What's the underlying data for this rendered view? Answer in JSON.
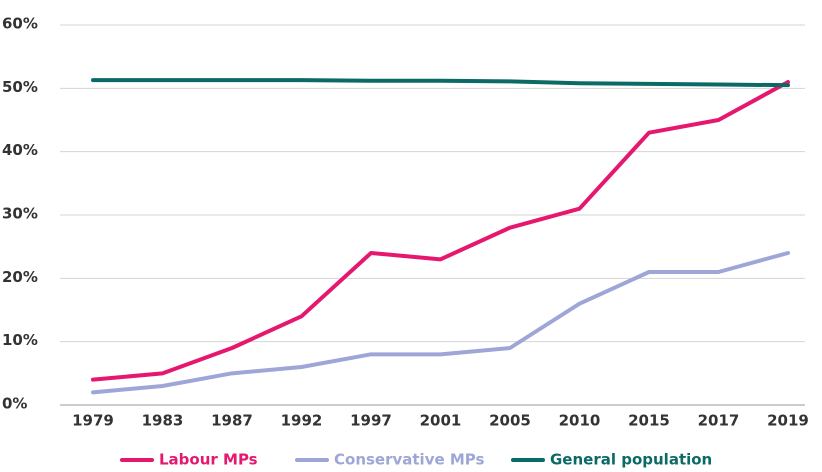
{
  "chart_data": {
    "type": "line",
    "categories": [
      "1979",
      "1983",
      "1987",
      "1992",
      "1997",
      "2001",
      "2005",
      "2010",
      "2015",
      "2017",
      "2019"
    ],
    "series": [
      {
        "name": "Labour MPs",
        "color": "#e5176f",
        "values": [
          4,
          5,
          9,
          14,
          24,
          23,
          28,
          31,
          43,
          45,
          51
        ]
      },
      {
        "name": "Conservative MPs",
        "color": "#9ea6d7",
        "values": [
          2,
          3,
          5,
          6,
          8,
          8,
          9,
          16,
          21,
          21,
          24
        ]
      },
      {
        "name": "General population",
        "color": "#0b6a66",
        "values": [
          51.3,
          51.3,
          51.3,
          51.3,
          51.2,
          51.2,
          51.1,
          50.8,
          50.7,
          50.6,
          50.5
        ]
      }
    ],
    "ylim": [
      0,
      60
    ],
    "yticks": [
      {
        "value": 0,
        "label": "0%"
      },
      {
        "value": 10,
        "label": "10%"
      },
      {
        "value": 20,
        "label": "20%"
      },
      {
        "value": 30,
        "label": "30%"
      },
      {
        "value": 40,
        "label": "40%"
      },
      {
        "value": 50,
        "label": "50%"
      },
      {
        "value": 60,
        "label": "60%"
      }
    ],
    "grid": true,
    "legend": "bottom"
  }
}
